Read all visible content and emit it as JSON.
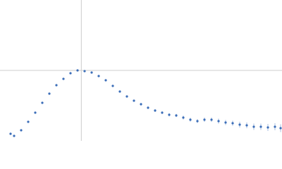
{
  "chart_data": {
    "type": "scatter",
    "color": "#3b6db8",
    "error_color": "#a9bfe0",
    "xlim": [
      0,
      6
    ],
    "ylim": [
      0,
      2.2
    ],
    "reference_lines": {
      "x": 1.73,
      "y": 1.1,
      "color": "#cccccc"
    },
    "x": [
      0.225,
      0.3,
      0.45,
      0.6,
      0.75,
      0.9,
      1.05,
      1.2,
      1.35,
      1.5,
      1.65,
      1.8,
      1.95,
      2.1,
      2.25,
      2.4,
      2.55,
      2.7,
      2.85,
      3.0,
      3.15,
      3.3,
      3.45,
      3.6,
      3.75,
      3.9,
      4.05,
      4.2,
      4.35,
      4.5,
      4.65,
      4.8,
      4.95,
      5.1,
      5.25,
      5.4,
      5.55,
      5.7,
      5.85,
      5.97
    ],
    "values": [
      0.11,
      0.077,
      0.165,
      0.297,
      0.44,
      0.594,
      0.737,
      0.869,
      0.968,
      1.056,
      1.1,
      1.089,
      1.067,
      1.012,
      0.946,
      0.858,
      0.77,
      0.693,
      0.627,
      0.572,
      0.517,
      0.473,
      0.44,
      0.407,
      0.396,
      0.363,
      0.33,
      0.308,
      0.33,
      0.33,
      0.308,
      0.286,
      0.275,
      0.253,
      0.242,
      0.22,
      0.22,
      0.209,
      0.22,
      0.198
    ],
    "errors": [
      0.01,
      0.01,
      0.01,
      0.01,
      0.01,
      0.01,
      0.01,
      0.01,
      0.01,
      0.01,
      0.01,
      0.01,
      0.01,
      0.01,
      0.01,
      0.015,
      0.015,
      0.015,
      0.015,
      0.02,
      0.02,
      0.02,
      0.02,
      0.025,
      0.025,
      0.03,
      0.03,
      0.03,
      0.035,
      0.035,
      0.04,
      0.04,
      0.04,
      0.045,
      0.045,
      0.05,
      0.05,
      0.055,
      0.055,
      0.06
    ]
  }
}
